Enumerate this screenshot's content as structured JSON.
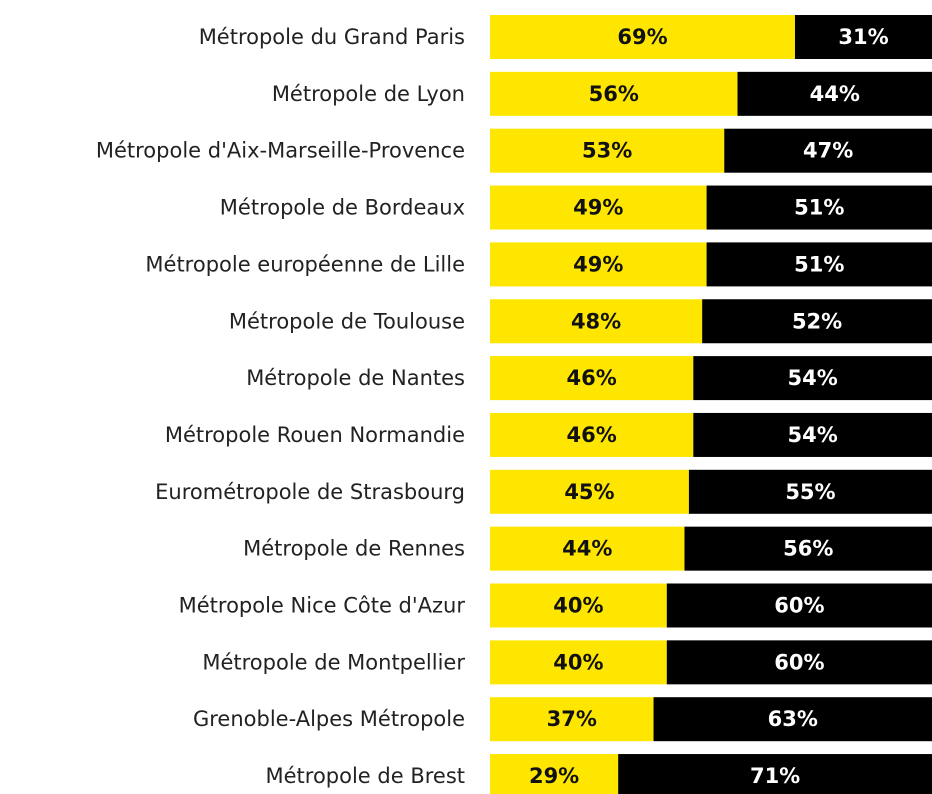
{
  "chart_data": {
    "type": "stacked_bar_horizontal",
    "categories": [
      "Métropole du Grand Paris",
      "Métropole de Lyon",
      "Métropole d'Aix-Marseille-Provence",
      "Métropole de Bordeaux",
      "Métropole européenne de Lille",
      "Métropole de Toulouse",
      "Métropole de Nantes",
      "Métropole Rouen Normandie",
      "Eurométropole de Strasbourg",
      "Métropole de Rennes",
      "Métropole Nice Côte d'Azur",
      "Métropole de Montpellier",
      "Grenoble-Alpes Métropole",
      "Métropole de Brest"
    ],
    "series": [
      {
        "color": "#ffe600",
        "label_color": "#111111",
        "values": [
          69,
          56,
          53,
          49,
          49,
          48,
          46,
          46,
          45,
          44,
          40,
          40,
          37,
          29
        ],
        "value_labels": [
          "69%",
          "56%",
          "53%",
          "49%",
          "49%",
          "48%",
          "46%",
          "46%",
          "45%",
          "44%",
          "40%",
          "40%",
          "37%",
          "29%"
        ]
      },
      {
        "color": "#000000",
        "label_color": "#ffffff",
        "values": [
          31,
          44,
          47,
          51,
          51,
          52,
          54,
          54,
          55,
          56,
          60,
          60,
          63,
          71
        ],
        "value_labels": [
          "31%",
          "44%",
          "47%",
          "51%",
          "51%",
          "52%",
          "54%",
          "54%",
          "55%",
          "56%",
          "60%",
          "60%",
          "63%",
          "71%"
        ]
      }
    ],
    "xlim": [
      0,
      100
    ]
  }
}
